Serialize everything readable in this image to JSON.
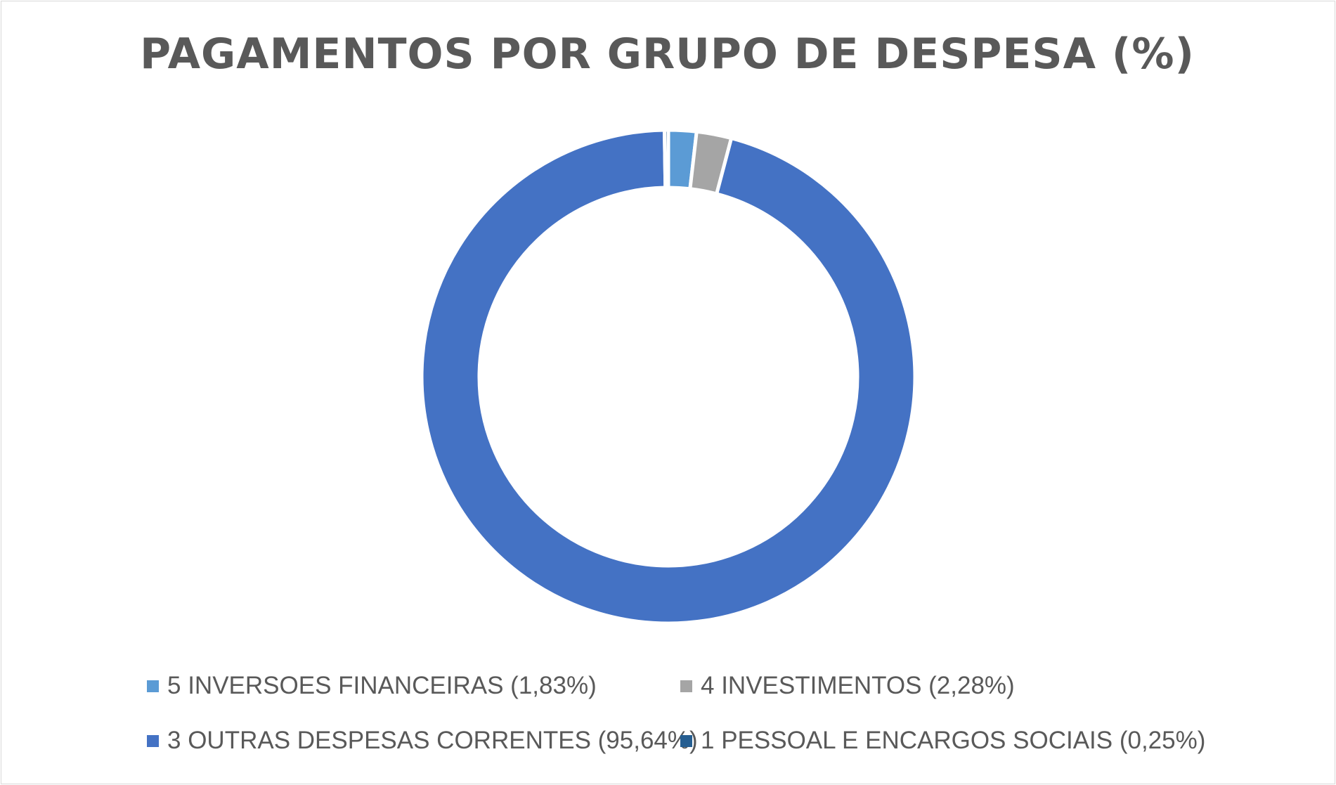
{
  "chart_data": {
    "type": "donut",
    "title": "PAGAMENTOS POR GRUPO DE DESPESA (%)",
    "legend_position": "bottom",
    "unit": "%",
    "series": [
      {
        "name": "5 INVERSOES FINANCEIRAS (1,83%)",
        "value": 1.83,
        "color": "#5b9bd5"
      },
      {
        "name": "4 INVESTIMENTOS (2,28%)",
        "value": 2.28,
        "color": "#a5a5a5"
      },
      {
        "name": "3 OUTRAS DESPESAS CORRENTES (95,64%)",
        "value": 95.64,
        "color": "#4472c4"
      },
      {
        "name": "1 PESSOAL E ENCARGOS SOCIAIS (0,25%)",
        "value": 0.25,
        "color": "#255e91"
      }
    ]
  }
}
